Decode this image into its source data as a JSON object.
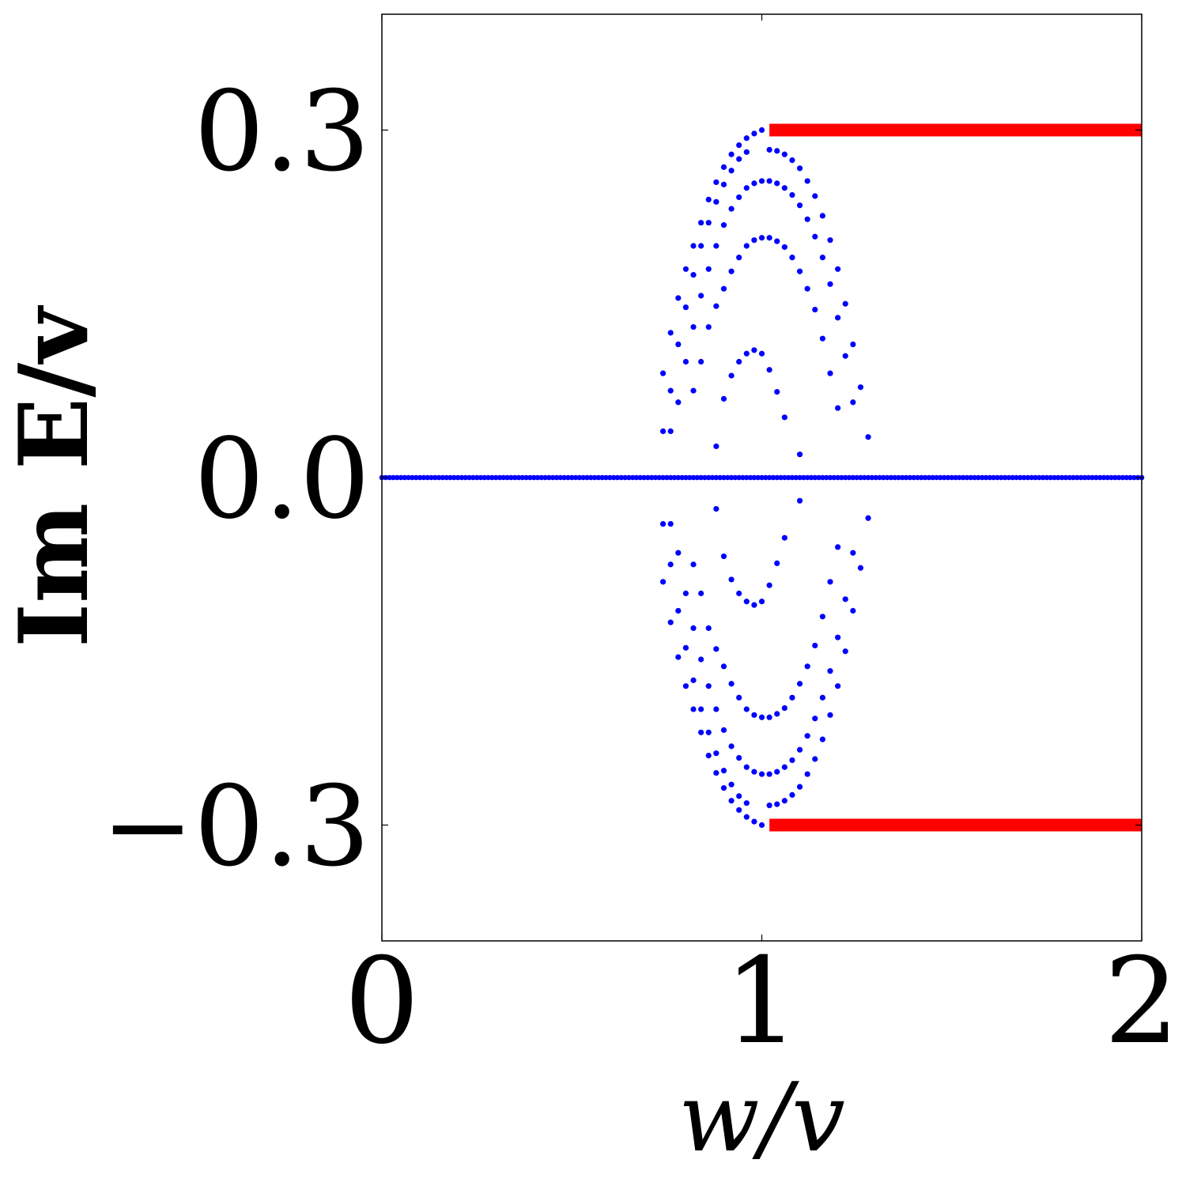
{
  "chart_data": {
    "type": "scatter",
    "title": "",
    "xlabel": "w/v",
    "ylabel": "Im E/v",
    "xlim": [
      0,
      2
    ],
    "ylim": [
      -0.4,
      0.4
    ],
    "xticks": [
      0,
      1,
      2
    ],
    "xtick_labels": [
      "0",
      "1",
      "2"
    ],
    "yticks": [
      0.3,
      0.0,
      -0.3
    ],
    "ytick_labels": [
      "0.3",
      "0.0",
      "−0.3"
    ],
    "grid": false,
    "legend": "none",
    "series": [
      {
        "kind": "segments",
        "color": "#ff0000",
        "segments": [
          {
            "x": [
              1.02,
              2.0
            ],
            "y": [
              0.3,
              0.3
            ]
          },
          {
            "x": [
              1.02,
              2.0
            ],
            "y": [
              -0.3,
              -0.3
            ]
          }
        ]
      },
      {
        "kind": "points",
        "color": "#0000ff",
        "baseline": {
          "y": 0.0,
          "x_start": 0.0,
          "x_end": 2.0,
          "step": 0.01
        },
        "points": [
          [
            1.0,
            0.3
          ],
          [
            0.98,
            0.297
          ],
          [
            0.96,
            0.293
          ],
          [
            0.94,
            0.287
          ],
          [
            0.92,
            0.279
          ],
          [
            0.9,
            0.268
          ],
          [
            0.88,
            0.255
          ],
          [
            0.86,
            0.24
          ],
          [
            0.84,
            0.22
          ],
          [
            0.82,
            0.2
          ],
          [
            0.8,
            0.18
          ],
          [
            0.78,
            0.155
          ],
          [
            0.76,
            0.125
          ],
          [
            0.74,
            0.09
          ],
          [
            1.02,
            0.283
          ],
          [
            1.04,
            0.282
          ],
          [
            1.06,
            0.279
          ],
          [
            1.08,
            0.274
          ],
          [
            1.1,
            0.267
          ],
          [
            1.12,
            0.256
          ],
          [
            1.14,
            0.243
          ],
          [
            1.16,
            0.226
          ],
          [
            1.18,
            0.205
          ],
          [
            1.2,
            0.18
          ],
          [
            1.22,
            0.15
          ],
          [
            1.24,
            0.115
          ],
          [
            1.26,
            0.078
          ],
          [
            1.28,
            0.035
          ],
          [
            0.96,
            0.281
          ],
          [
            0.94,
            0.275
          ],
          [
            0.92,
            0.265
          ],
          [
            0.9,
            0.253
          ],
          [
            0.88,
            0.238
          ],
          [
            0.86,
            0.22
          ],
          [
            0.84,
            0.2
          ],
          [
            0.82,
            0.175
          ],
          [
            0.8,
            0.147
          ],
          [
            0.78,
            0.115
          ],
          [
            0.76,
            0.075
          ],
          [
            0.74,
            0.04
          ],
          [
            1.0,
            0.256
          ],
          [
            1.02,
            0.256
          ],
          [
            1.04,
            0.254
          ],
          [
            1.06,
            0.25
          ],
          [
            1.08,
            0.244
          ],
          [
            1.1,
            0.235
          ],
          [
            1.12,
            0.223
          ],
          [
            1.14,
            0.208
          ],
          [
            1.16,
            0.19
          ],
          [
            1.18,
            0.167
          ],
          [
            1.2,
            0.138
          ],
          [
            1.22,
            0.105
          ],
          [
            1.24,
            0.065
          ],
          [
            0.98,
            0.254
          ],
          [
            0.96,
            0.25
          ],
          [
            0.94,
            0.242
          ],
          [
            0.92,
            0.232
          ],
          [
            0.9,
            0.218
          ],
          [
            0.88,
            0.2
          ],
          [
            0.86,
            0.18
          ],
          [
            0.84,
            0.157
          ],
          [
            0.82,
            0.13
          ],
          [
            0.8,
            0.1
          ],
          [
            0.78,
            0.065
          ],
          [
            0.76,
            0.04
          ],
          [
            1.0,
            0.207
          ],
          [
            1.02,
            0.207
          ],
          [
            1.04,
            0.204
          ],
          [
            1.06,
            0.199
          ],
          [
            1.08,
            0.19
          ],
          [
            1.1,
            0.178
          ],
          [
            1.12,
            0.163
          ],
          [
            1.14,
            0.145
          ],
          [
            1.16,
            0.12
          ],
          [
            1.18,
            0.09
          ],
          [
            1.2,
            0.06
          ],
          [
            0.98,
            0.205
          ],
          [
            0.96,
            0.2
          ],
          [
            0.94,
            0.19
          ],
          [
            0.92,
            0.178
          ],
          [
            0.9,
            0.163
          ],
          [
            0.88,
            0.148
          ],
          [
            0.86,
            0.13
          ],
          [
            0.84,
            0.1
          ],
          [
            0.82,
            0.075
          ],
          [
            0.98,
            0.11
          ],
          [
            0.96,
            0.107
          ],
          [
            1.0,
            0.107
          ],
          [
            0.94,
            0.1
          ],
          [
            1.02,
            0.093
          ],
          [
            0.92,
            0.088
          ],
          [
            1.04,
            0.074
          ],
          [
            0.9,
            0.068
          ],
          [
            1.06,
            0.052
          ],
          [
            0.88,
            0.027
          ],
          [
            1.1,
            0.02
          ],
          [
            1.0,
            -0.3
          ],
          [
            0.98,
            -0.297
          ],
          [
            0.96,
            -0.293
          ],
          [
            0.94,
            -0.287
          ],
          [
            0.92,
            -0.279
          ],
          [
            0.9,
            -0.268
          ],
          [
            0.88,
            -0.255
          ],
          [
            0.86,
            -0.24
          ],
          [
            0.84,
            -0.22
          ],
          [
            0.82,
            -0.2
          ],
          [
            0.8,
            -0.18
          ],
          [
            0.78,
            -0.155
          ],
          [
            0.76,
            -0.125
          ],
          [
            0.74,
            -0.09
          ],
          [
            1.02,
            -0.283
          ],
          [
            1.04,
            -0.282
          ],
          [
            1.06,
            -0.279
          ],
          [
            1.08,
            -0.274
          ],
          [
            1.1,
            -0.267
          ],
          [
            1.12,
            -0.256
          ],
          [
            1.14,
            -0.243
          ],
          [
            1.16,
            -0.226
          ],
          [
            1.18,
            -0.205
          ],
          [
            1.2,
            -0.18
          ],
          [
            1.22,
            -0.15
          ],
          [
            1.24,
            -0.115
          ],
          [
            1.26,
            -0.078
          ],
          [
            1.28,
            -0.035
          ],
          [
            0.96,
            -0.281
          ],
          [
            0.94,
            -0.275
          ],
          [
            0.92,
            -0.265
          ],
          [
            0.9,
            -0.253
          ],
          [
            0.88,
            -0.238
          ],
          [
            0.86,
            -0.22
          ],
          [
            0.84,
            -0.2
          ],
          [
            0.82,
            -0.175
          ],
          [
            0.8,
            -0.147
          ],
          [
            0.78,
            -0.115
          ],
          [
            0.76,
            -0.075
          ],
          [
            0.74,
            -0.04
          ],
          [
            1.0,
            -0.256
          ],
          [
            1.02,
            -0.256
          ],
          [
            1.04,
            -0.254
          ],
          [
            1.06,
            -0.25
          ],
          [
            1.08,
            -0.244
          ],
          [
            1.1,
            -0.235
          ],
          [
            1.12,
            -0.223
          ],
          [
            1.14,
            -0.208
          ],
          [
            1.16,
            -0.19
          ],
          [
            1.18,
            -0.167
          ],
          [
            1.2,
            -0.138
          ],
          [
            1.22,
            -0.105
          ],
          [
            1.24,
            -0.065
          ],
          [
            0.98,
            -0.254
          ],
          [
            0.96,
            -0.25
          ],
          [
            0.94,
            -0.242
          ],
          [
            0.92,
            -0.232
          ],
          [
            0.9,
            -0.218
          ],
          [
            0.88,
            -0.2
          ],
          [
            0.86,
            -0.18
          ],
          [
            0.84,
            -0.157
          ],
          [
            0.82,
            -0.13
          ],
          [
            0.8,
            -0.1
          ],
          [
            0.78,
            -0.065
          ],
          [
            0.76,
            -0.04
          ],
          [
            1.0,
            -0.207
          ],
          [
            1.02,
            -0.207
          ],
          [
            1.04,
            -0.204
          ],
          [
            1.06,
            -0.199
          ],
          [
            1.08,
            -0.19
          ],
          [
            1.1,
            -0.178
          ],
          [
            1.12,
            -0.163
          ],
          [
            1.14,
            -0.145
          ],
          [
            1.16,
            -0.12
          ],
          [
            1.18,
            -0.09
          ],
          [
            1.2,
            -0.06
          ],
          [
            0.98,
            -0.205
          ],
          [
            0.96,
            -0.2
          ],
          [
            0.94,
            -0.19
          ],
          [
            0.92,
            -0.178
          ],
          [
            0.9,
            -0.163
          ],
          [
            0.88,
            -0.148
          ],
          [
            0.86,
            -0.13
          ],
          [
            0.84,
            -0.1
          ],
          [
            0.82,
            -0.075
          ],
          [
            0.98,
            -0.11
          ],
          [
            0.96,
            -0.107
          ],
          [
            1.0,
            -0.107
          ],
          [
            0.94,
            -0.1
          ],
          [
            1.02,
            -0.093
          ],
          [
            0.92,
            -0.088
          ],
          [
            1.04,
            -0.074
          ],
          [
            0.9,
            -0.068
          ],
          [
            1.06,
            -0.052
          ],
          [
            0.88,
            -0.027
          ],
          [
            1.1,
            -0.02
          ]
        ]
      }
    ]
  }
}
